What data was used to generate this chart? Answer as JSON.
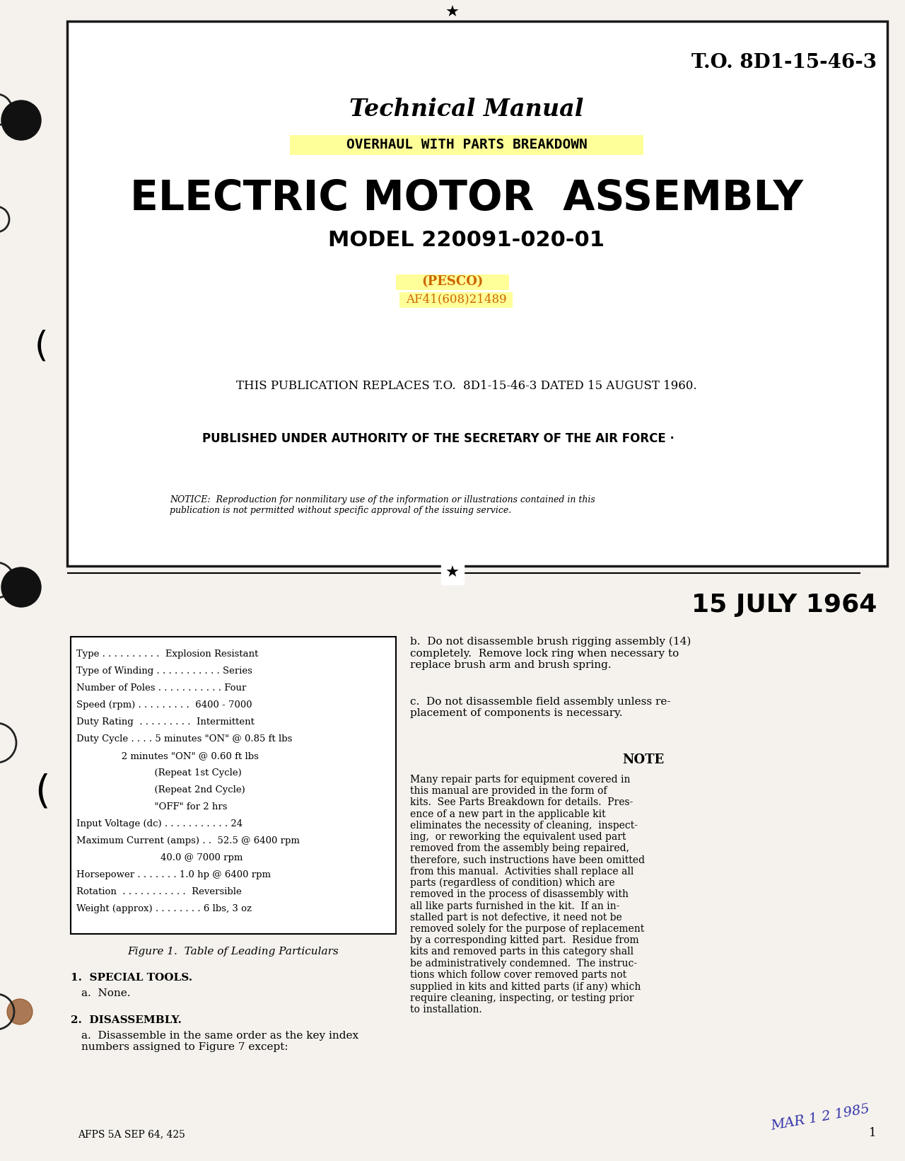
{
  "bg_color": "#f0ede8",
  "page_bg": "#f5f2ed",
  "border_color": "#1a1a1a",
  "to_number": "T.O. 8D1-15-46-3",
  "title_line1": "Technical Manual",
  "highlight_text": "OVERHAUL WITH PARTS BREAKDOWN",
  "highlight_color": "#ffff99",
  "main_title": "ELECTRIC MOTOR  ASSEMBLY",
  "model": "MODEL 220091-020-01",
  "pesco": "(PESCO)",
  "pesco_color": "#cc6600",
  "af_number": "AF41(608)21489",
  "replaces_text": "THIS PUBLICATION REPLACES T.O.  8D1-15-46-3 DATED 15 AUGUST 1960.",
  "authority_text": "PUBLISHED UNDER AUTHORITY OF THE SECRETARY OF THE AIR FORCE ·",
  "notice_text": "NOTICE:  Reproduction for nonmilitary use of the information or illustrations contained in this\npublication is not permitted without specific approval of the issuing service.",
  "date": "15 JULY 1964",
  "figure_caption": "Figure 1.  Table of Leading Particulars",
  "special_tools_header": "1.  SPECIAL TOOLS.",
  "special_tools_a": "a.  None.",
  "disassembly_header": "2.  DISASSEMBLY.",
  "disassembly_a": "a.  Disassemble in the same order as the key index\nnumbers assigned to Figure 7 except:",
  "footer_left": "AFPS 5A SEP 64, 425",
  "page_num": "1",
  "stamp_text": "MAR 1 2 1985",
  "table_lines": [
    "Type . . . . . . . . . .  Explosion Resistant",
    "Type of Winding . . . . . . . . . . . Series",
    "Number of Poles . . . . . . . . . . . Four",
    "Speed (rpm) . . . . . . . . .  6400 - 7000",
    "Duty Rating  . . . . . . . . .  Intermittent",
    "Duty Cycle . . . . 5 minutes \"ON\" @ 0.85 ft lbs",
    "               2 minutes \"ON\" @ 0.60 ft lbs",
    "                          (Repeat 1st Cycle)",
    "                          (Repeat 2nd Cycle)",
    "                          \"OFF\" for 2 hrs",
    "Input Voltage (dc) . . . . . . . . . . . 24",
    "Maximum Current (amps) . .  52.5 @ 6400 rpm",
    "                            40.0 @ 7000 rpm",
    "Horsepower . . . . . . . 1.0 hp @ 6400 rpm",
    "Rotation  . . . . . . . . . . .  Reversible",
    "Weight (approx) . . . . . . . . 6 lbs, 3 oz"
  ],
  "right_col_b": "b.  Do not disassemble brush rigging assembly (14)\ncompletely.  Remove lock ring when necessary to\nreplace brush arm and brush spring.",
  "right_col_c": "c.  Do not disassemble field assembly unless re-\nplacement of components is necessary.",
  "note_header": "NOTE",
  "note_text": "Many repair parts for equipment covered in\nthis manual are provided in the form of\nkits.  See Parts Breakdown for details.  Pres-\nence of a new part in the applicable kit\neliminates the necessity of cleaning,  inspect-\ning,  or reworking the equivalent used part\nremoved from the assembly being repaired,\ntherefore, such instructions have been omitted\nfrom this manual.  Activities shall replace all\nparts (regardless of condition) which are\nremoved in the process of disassembly with\nall like parts furnished in the kit.  If an in-\nstalled part is not defective, it need not be\nremoved solely for the purpose of replacement\nby a corresponding kitted part.  Residue from\nkits and removed parts in this category shall\nbe administratively condemned.  The instruc-\ntions which follow cover removed parts not\nsupplied in kits and kitted parts (if any) which\nrequire cleaning, inspecting, or testing prior\nto installation."
}
